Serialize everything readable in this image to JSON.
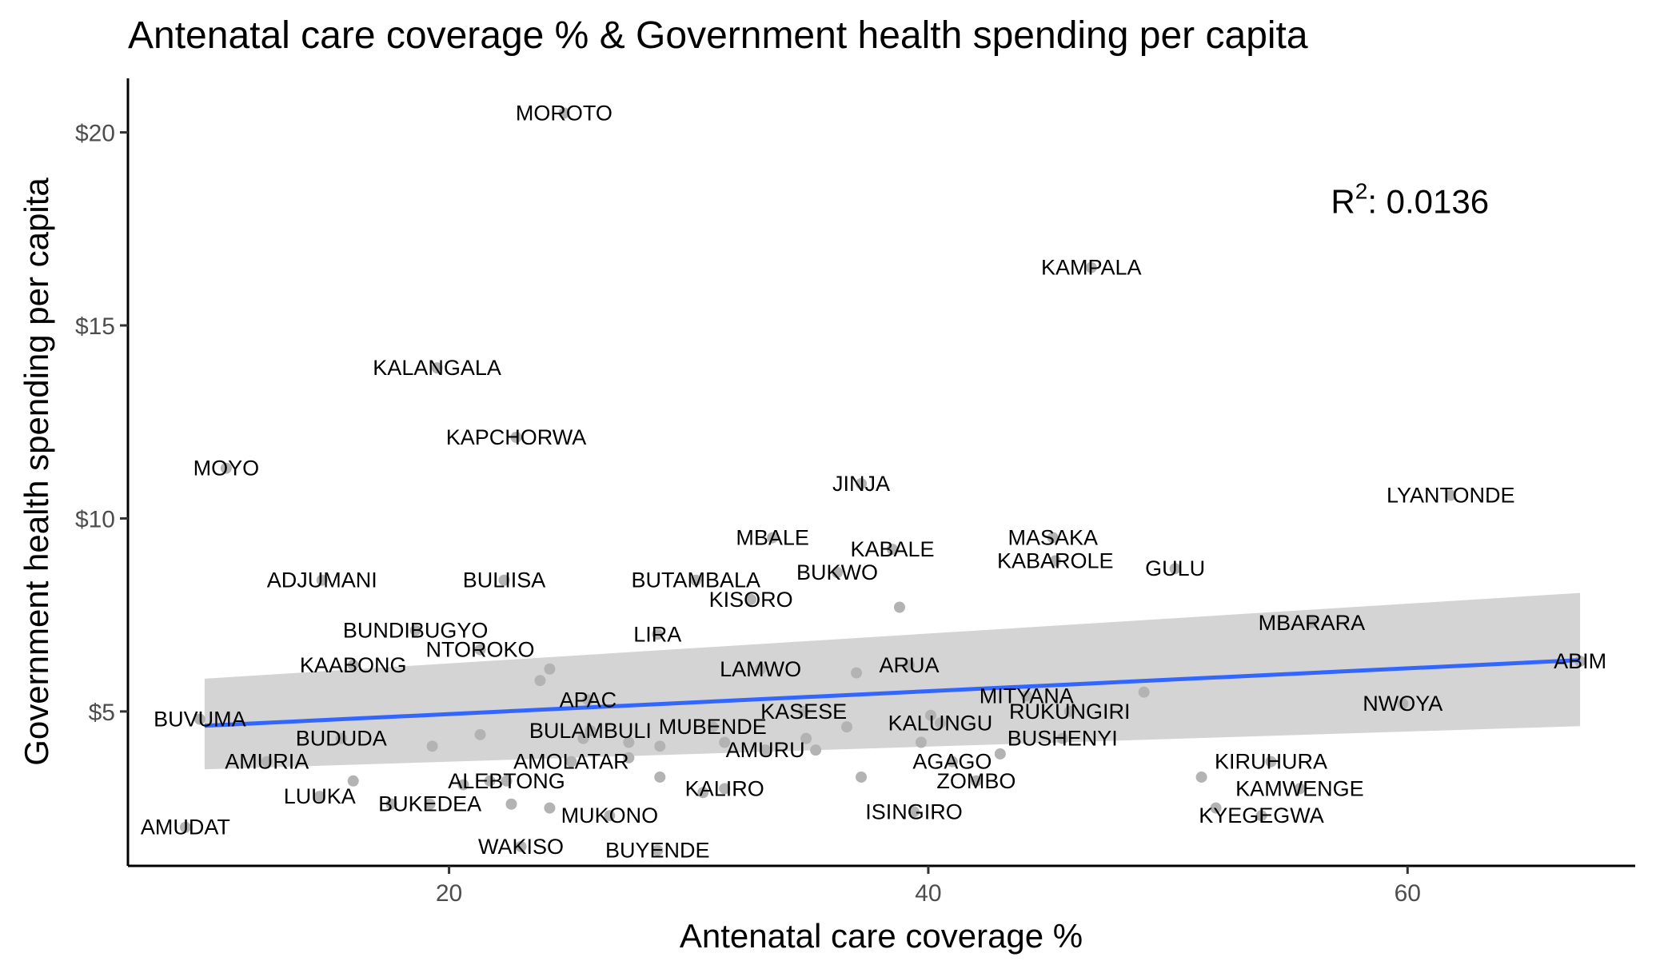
{
  "chart_data": {
    "type": "scatter",
    "title": "Antenatal care coverage % & Government health spending per capita",
    "xlabel": "Antenatal care coverage %",
    "ylabel": "Government health spending per capita",
    "xlim": [
      6.6,
      69.5
    ],
    "ylim": [
      1.0,
      21.4
    ],
    "x_ticks": [
      20,
      40,
      60
    ],
    "x_tick_labels": [
      "20",
      "40",
      "60"
    ],
    "y_ticks": [
      5,
      10,
      15,
      20
    ],
    "y_tick_labels": [
      "$5",
      "$10",
      "$15",
      "$20"
    ],
    "grid": false,
    "point_color": "#b3b3b3",
    "fit_color": "#3366ff",
    "band_color": "#d4d4d4",
    "annotation": {
      "prefix": "R",
      "sup": "2",
      "value": ": 0.0136",
      "x": 56.8,
      "y": 18.2
    },
    "fit": {
      "x": [
        9.8,
        67.2
      ],
      "y": [
        4.63,
        6.33
      ],
      "lower": [
        3.5,
        4.62
      ],
      "upper": [
        5.85,
        8.07
      ]
    },
    "points": [
      {
        "name": "MOROTO",
        "x": 24.8,
        "y": 20.5
      },
      {
        "name": "KAMPALA",
        "x": 46.8,
        "y": 16.5
      },
      {
        "name": "KALANGALA",
        "x": 19.5,
        "y": 13.9
      },
      {
        "name": "KAPCHORWA",
        "x": 22.8,
        "y": 12.1
      },
      {
        "name": "MOYO",
        "x": 10.7,
        "y": 11.3
      },
      {
        "name": "JINJA",
        "x": 37.2,
        "y": 10.9
      },
      {
        "name": "LYANTONDE",
        "x": 61.8,
        "y": 10.6
      },
      {
        "name": "MBALE",
        "x": 33.5,
        "y": 9.5
      },
      {
        "name": "MASAKA",
        "x": 45.2,
        "y": 9.5
      },
      {
        "name": "KABALE",
        "x": 38.5,
        "y": 9.2
      },
      {
        "name": "KABAROLE",
        "x": 45.3,
        "y": 8.9
      },
      {
        "name": "GULU",
        "x": 50.3,
        "y": 8.7
      },
      {
        "name": "BUTAMBALA",
        "x": 30.3,
        "y": 8.4
      },
      {
        "name": "BULIISA",
        "x": 22.3,
        "y": 8.4
      },
      {
        "name": "ADJUMANI",
        "x": 14.7,
        "y": 8.4
      },
      {
        "name": "BUKWO",
        "x": 36.2,
        "y": 8.6
      },
      {
        "name": "KISORO",
        "x": 32.6,
        "y": 7.9
      },
      {
        "name": "MBARARA",
        "x": 56.0,
        "y": 7.3
      },
      {
        "name": "BUNDIBUGYO",
        "x": 18.6,
        "y": 7.1
      },
      {
        "name": "LIRA",
        "x": 28.7,
        "y": 7.0
      },
      {
        "name": "NTOROKO",
        "x": 21.3,
        "y": 6.6
      },
      {
        "name": "KAABONG",
        "x": 16.0,
        "y": 6.2
      },
      {
        "name": "LAMWO",
        "x": 33.0,
        "y": 6.1
      },
      {
        "name": "ARUA",
        "x": 39.2,
        "y": 6.2
      },
      {
        "name": "ABIM",
        "x": 67.2,
        "y": 6.3
      },
      {
        "name": "MITYANA",
        "x": 44.1,
        "y": 5.4
      },
      {
        "name": "APAC",
        "x": 25.8,
        "y": 5.3
      },
      {
        "name": "NWOYA",
        "x": 59.8,
        "y": 5.2
      },
      {
        "name": "KASESE",
        "x": 34.8,
        "y": 5.0
      },
      {
        "name": "RUKUNGIRI",
        "x": 45.9,
        "y": 5.0
      },
      {
        "name": "BUVUMA",
        "x": 9.6,
        "y": 4.8
      },
      {
        "name": "BULAMBULI",
        "x": 25.9,
        "y": 4.5
      },
      {
        "name": "MUBENDE",
        "x": 31.0,
        "y": 4.6
      },
      {
        "name": "KALUNGU",
        "x": 40.5,
        "y": 4.7
      },
      {
        "name": "BUDUDA",
        "x": 15.5,
        "y": 4.3
      },
      {
        "name": "BUSHENYI",
        "x": 45.6,
        "y": 4.3
      },
      {
        "name": "AMURU",
        "x": 33.2,
        "y": 4.0
      },
      {
        "name": "AMURIA",
        "x": 12.4,
        "y": 3.7
      },
      {
        "name": "AMOLATAR",
        "x": 25.1,
        "y": 3.7
      },
      {
        "name": "AGAGO",
        "x": 41.0,
        "y": 3.7
      },
      {
        "name": "KIRUHURA",
        "x": 54.3,
        "y": 3.7
      },
      {
        "name": "ALEBTONG",
        "x": 22.4,
        "y": 3.2
      },
      {
        "name": "ZOMBO",
        "x": 42.0,
        "y": 3.2
      },
      {
        "name": "KALIRO",
        "x": 31.5,
        "y": 3.0
      },
      {
        "name": "KAMWENGE",
        "x": 55.5,
        "y": 3.0
      },
      {
        "name": "LUUKA",
        "x": 14.6,
        "y": 2.8
      },
      {
        "name": "BUKEDEA",
        "x": 19.2,
        "y": 2.6
      },
      {
        "name": "MUKONO",
        "x": 26.7,
        "y": 2.3
      },
      {
        "name": "ISINGIRO",
        "x": 39.4,
        "y": 2.4
      },
      {
        "name": "KYEGEGWA",
        "x": 53.9,
        "y": 2.3
      },
      {
        "name": "AMUDAT",
        "x": 9.0,
        "y": 2.0
      },
      {
        "name": "WAKISO",
        "x": 23.0,
        "y": 1.5
      },
      {
        "name": "BUYENDE",
        "x": 28.7,
        "y": 1.4
      }
    ],
    "extra_points": [
      {
        "x": 20.6,
        "y": 3.1
      },
      {
        "x": 21.3,
        "y": 4.4
      },
      {
        "x": 21.7,
        "y": 3.2
      },
      {
        "x": 22.6,
        "y": 2.6
      },
      {
        "x": 23.8,
        "y": 5.8
      },
      {
        "x": 24.2,
        "y": 2.5
      },
      {
        "x": 24.2,
        "y": 6.1
      },
      {
        "x": 25.6,
        "y": 4.3
      },
      {
        "x": 27.5,
        "y": 4.2
      },
      {
        "x": 27.5,
        "y": 3.8
      },
      {
        "x": 28.8,
        "y": 3.3
      },
      {
        "x": 28.8,
        "y": 4.1
      },
      {
        "x": 30.6,
        "y": 2.9
      },
      {
        "x": 31.5,
        "y": 4.2
      },
      {
        "x": 34.9,
        "y": 4.3
      },
      {
        "x": 35.3,
        "y": 4.0
      },
      {
        "x": 36.6,
        "y": 4.6
      },
      {
        "x": 37.0,
        "y": 6.0
      },
      {
        "x": 37.2,
        "y": 3.3
      },
      {
        "x": 38.8,
        "y": 7.7
      },
      {
        "x": 39.7,
        "y": 4.2
      },
      {
        "x": 40.1,
        "y": 4.9
      },
      {
        "x": 43.0,
        "y": 3.9
      },
      {
        "x": 49.0,
        "y": 5.5
      },
      {
        "x": 51.4,
        "y": 3.3
      },
      {
        "x": 52.0,
        "y": 2.5
      },
      {
        "x": 16.0,
        "y": 3.2
      },
      {
        "x": 19.3,
        "y": 4.1
      },
      {
        "x": 17.6,
        "y": 2.6
      }
    ]
  }
}
